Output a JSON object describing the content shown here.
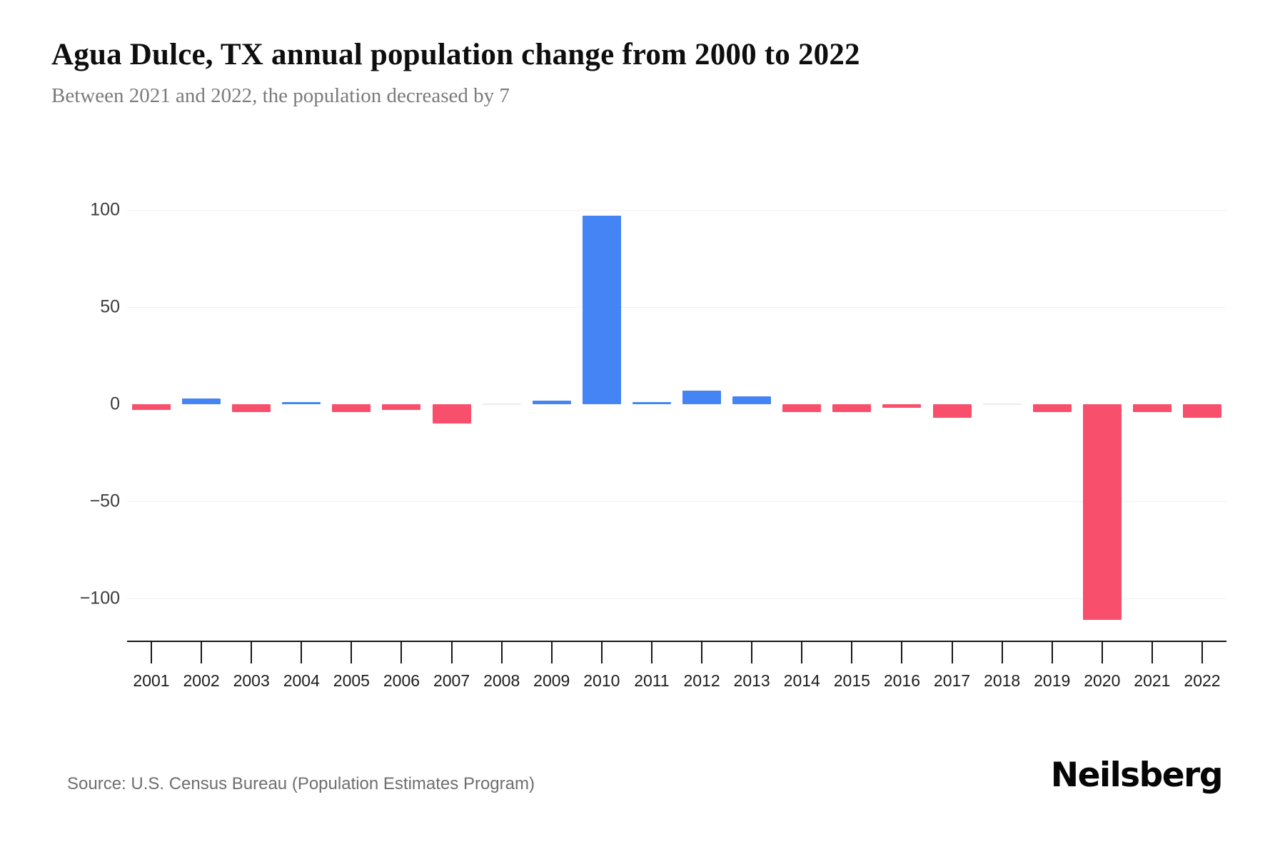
{
  "header": {
    "title": "Agua Dulce, TX annual population change from 2000 to 2022",
    "subtitle": "Between 2021 and 2022, the population decreased by 7"
  },
  "chart_data": {
    "type": "bar",
    "title": "Agua Dulce, TX annual population change from 2000 to 2022",
    "subtitle": "Between 2021 and 2022, the population decreased by 7",
    "xlabel": "",
    "ylabel": "",
    "categories": [
      "2001",
      "2002",
      "2003",
      "2004",
      "2005",
      "2006",
      "2007",
      "2008",
      "2009",
      "2010",
      "2011",
      "2012",
      "2013",
      "2014",
      "2015",
      "2016",
      "2017",
      "2018",
      "2019",
      "2020",
      "2021",
      "2022"
    ],
    "values": [
      -3,
      3,
      -4,
      1,
      -4,
      -3,
      -10,
      0,
      2,
      97,
      1,
      7,
      4,
      -4,
      -4,
      -2,
      -7,
      0,
      -4,
      -111,
      -4,
      -7
    ],
    "ylim": [
      -125,
      112
    ],
    "grid": true,
    "legend_position": "none",
    "yticks": [
      {
        "label": "100",
        "value": 100,
        "grid": true
      },
      {
        "label": "50",
        "value": 50,
        "grid": true
      },
      {
        "label": "0",
        "value": 0,
        "grid": false
      },
      {
        "label": "−50",
        "value": -50,
        "grid": true
      },
      {
        "label": "−100",
        "value": -100,
        "grid": true
      }
    ],
    "colors": {
      "positive": "#4584F4",
      "negative": "#F8506C",
      "zero": "#EBEBEB"
    }
  },
  "footer": {
    "source": "Source: U.S. Census Bureau (Population Estimates Program)",
    "brand": "Neilsberg"
  }
}
